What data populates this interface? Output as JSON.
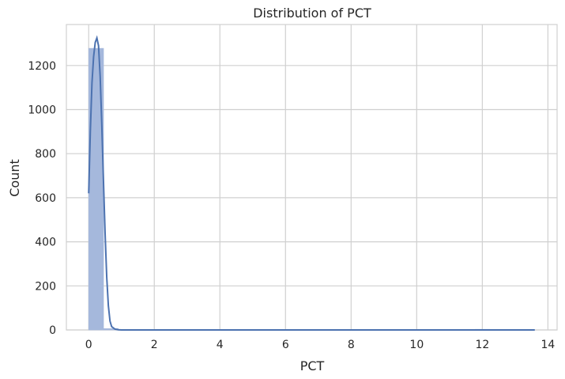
{
  "chart_data": {
    "type": "bar",
    "title": "Distribution of PCT",
    "xlabel": "PCT",
    "ylabel": "Count",
    "xlim": [
      -0.68,
      14.28
    ],
    "ylim": [
      0,
      1386
    ],
    "xticks": [
      0,
      2,
      4,
      6,
      8,
      10,
      12,
      14
    ],
    "yticks": [
      0,
      200,
      400,
      600,
      800,
      1000,
      1200
    ],
    "grid": true,
    "bins": {
      "width": 0.453,
      "edges_start": 0.0,
      "counts": [
        1278,
        6,
        2,
        1,
        1,
        0,
        1,
        0,
        0,
        0,
        0,
        0,
        0,
        0,
        0,
        0,
        0,
        0,
        0,
        0,
        0,
        0,
        0,
        1,
        0,
        1,
        3,
        2,
        2,
        1
      ]
    },
    "kde": {
      "x": [
        0.0,
        0.05,
        0.1,
        0.15,
        0.2,
        0.25,
        0.3,
        0.35,
        0.4,
        0.45,
        0.5,
        0.55,
        0.6,
        0.65,
        0.7,
        0.8,
        0.9,
        1.0,
        1.2,
        1.6,
        2.0,
        3.0,
        13.6
      ],
      "y": [
        620,
        900,
        1120,
        1240,
        1305,
        1325,
        1290,
        1150,
        930,
        680,
        440,
        240,
        110,
        40,
        15,
        4,
        1,
        0,
        0,
        0,
        0,
        0,
        0
      ]
    },
    "colors": {
      "bar": "#a5b8dc",
      "kde": "#4c72b0",
      "grid": "#d0d0d0",
      "axis_text": "#262626"
    }
  }
}
